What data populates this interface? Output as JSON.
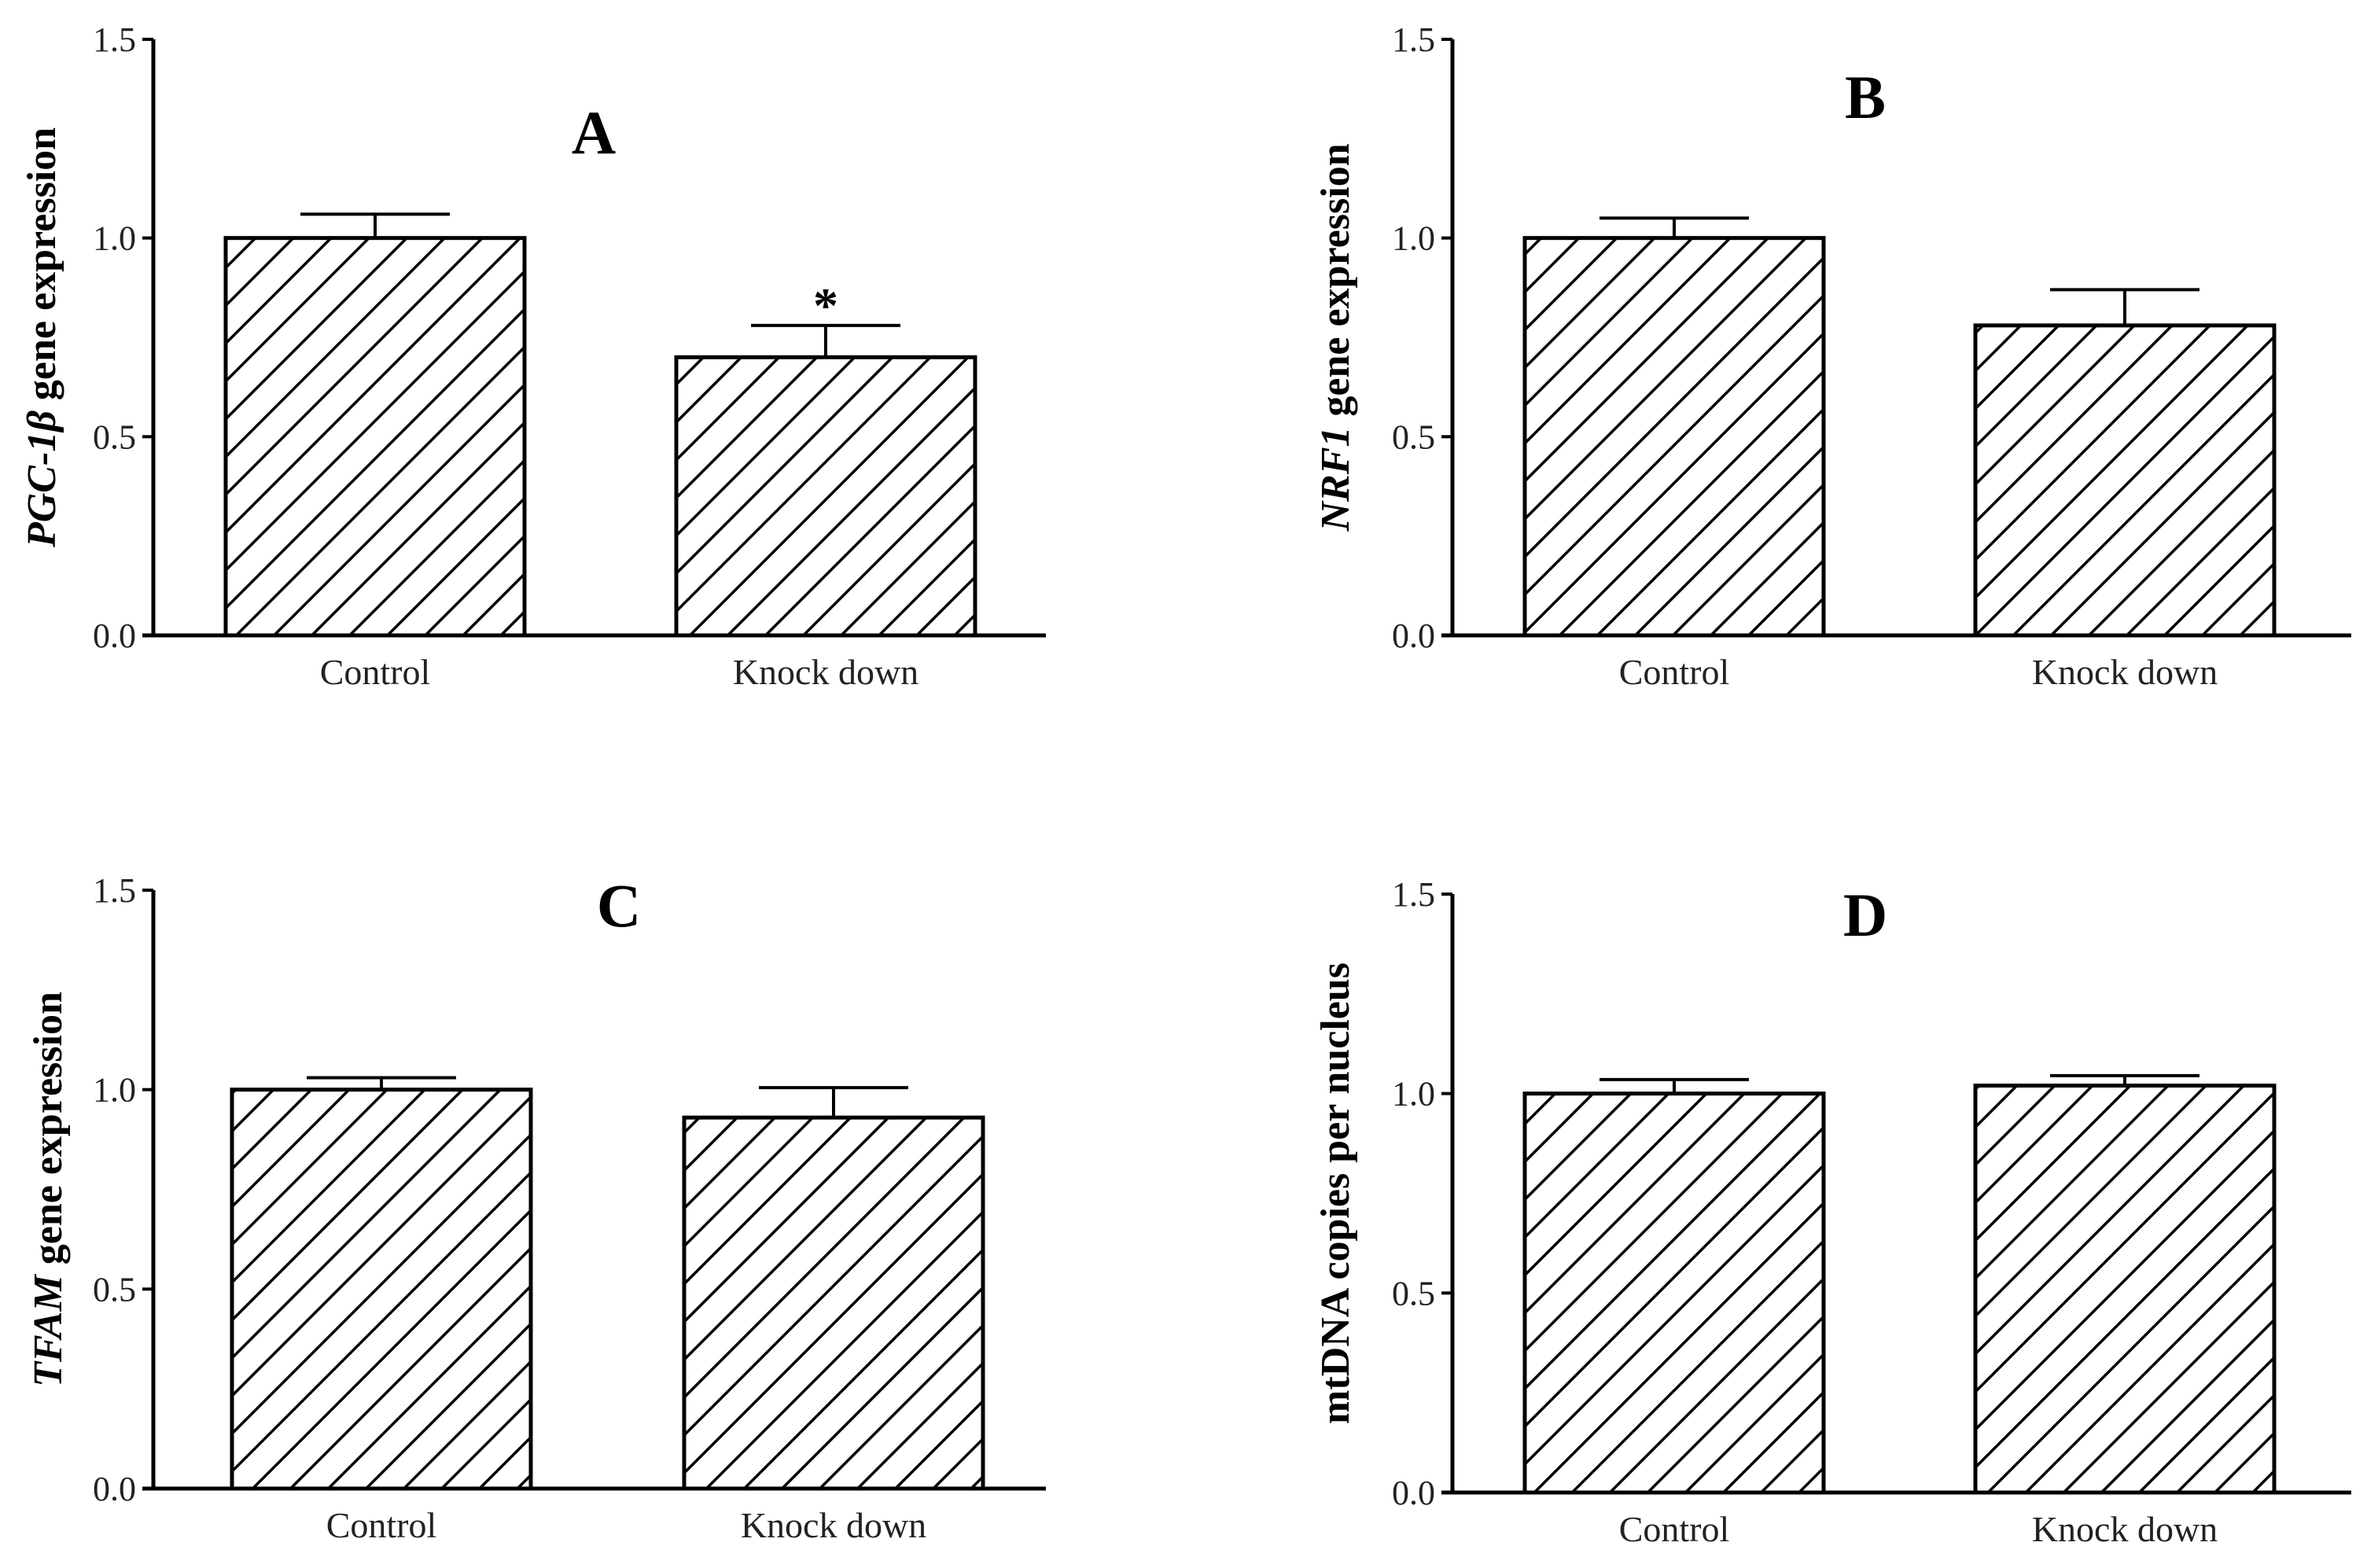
{
  "chart_data": [
    {
      "type": "bar",
      "panel": "A",
      "categories": [
        "Control",
        "Knock down"
      ],
      "values": [
        1.0,
        0.7
      ],
      "errors": [
        0.06,
        0.08
      ],
      "significance": [
        "",
        "*"
      ],
      "ylabel_italic": "PGC-1β",
      "ylabel_rest": " gene expression",
      "ylim": [
        0,
        1.5
      ],
      "yticks": [
        "0.0",
        "0.5",
        "1.0",
        "1.5"
      ],
      "pattern": "diagonal-hatch"
    },
    {
      "type": "bar",
      "panel": "B",
      "categories": [
        "Control",
        "Knock down"
      ],
      "values": [
        1.0,
        0.78
      ],
      "errors": [
        0.05,
        0.09
      ],
      "significance": [
        "",
        ""
      ],
      "ylabel_italic": "NRF1",
      "ylabel_rest": " gene expression",
      "ylim": [
        0,
        1.5
      ],
      "yticks": [
        "0.0",
        "0.5",
        "1.0",
        "1.5"
      ],
      "pattern": "diagonal-hatch"
    },
    {
      "type": "bar",
      "panel": "C",
      "categories": [
        "Control",
        "Knock down"
      ],
      "values": [
        1.0,
        0.93
      ],
      "errors": [
        0.03,
        0.075
      ],
      "significance": [
        "",
        ""
      ],
      "ylabel_italic": "TFAM",
      "ylabel_rest": " gene expression",
      "ylim": [
        0,
        1.5
      ],
      "yticks": [
        "0.0",
        "0.5",
        "1.0",
        "1.5"
      ],
      "pattern": "diagonal-hatch"
    },
    {
      "type": "bar",
      "panel": "D",
      "categories": [
        "Control",
        "Knock down"
      ],
      "values": [
        1.0,
        1.02
      ],
      "errors": [
        0.035,
        0.025
      ],
      "significance": [
        "",
        ""
      ],
      "ylabel_italic": "",
      "ylabel_rest": "mtDNA copies per nucleus",
      "ylim": [
        0,
        1.5
      ],
      "yticks": [
        "0.0",
        "0.5",
        "1.0",
        "1.5"
      ],
      "pattern": "diagonal-hatch"
    }
  ],
  "colors": {
    "ink": "#000000",
    "bar_fill": "#ffffff",
    "hatch": "#000000",
    "label": "#222222"
  }
}
